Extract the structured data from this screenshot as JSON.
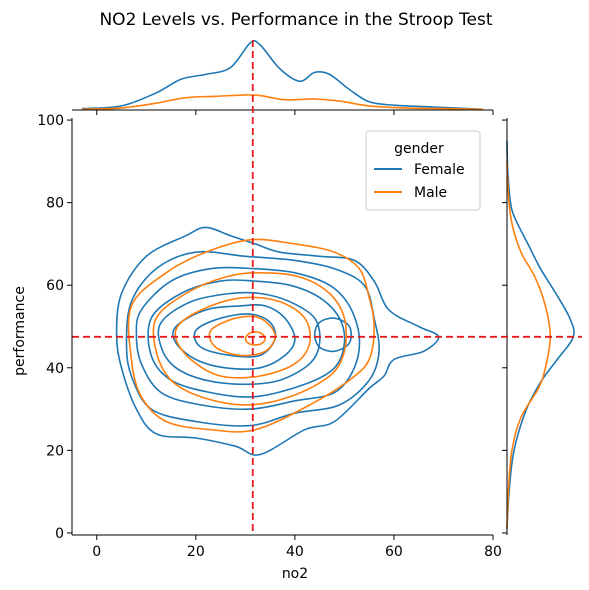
{
  "chart_data": {
    "type": "kde-joint",
    "title": "NO2 Levels vs. Performance in the Stroop Test",
    "xlabel": "no2",
    "ylabel": "performance",
    "xlim": [
      -5,
      80
    ],
    "ylim": [
      -0.5,
      100.5
    ],
    "xticks": [
      0,
      20,
      40,
      60,
      80
    ],
    "yticks": [
      0,
      20,
      40,
      60,
      80,
      100
    ],
    "grid": false,
    "legend": {
      "title": "gender",
      "placement": "top-right",
      "entries": [
        "Female",
        "Male"
      ]
    },
    "reference_lines": {
      "vertical_x": 31.5,
      "horizontal_y": 47.5,
      "color": "#e41a1c",
      "style": "dashed"
    },
    "series": [
      {
        "name": "Female",
        "color": "#1f77b4",
        "joint_contours": [
          {
            "level": 1,
            "points": [
              [
                5,
                58
              ],
              [
                10,
                67
              ],
              [
                18,
                72
              ],
              [
                22,
                74
              ],
              [
                27,
                72
              ],
              [
                32,
                70
              ],
              [
                37,
                68
              ],
              [
                45,
                67
              ],
              [
                52,
                66
              ],
              [
                56,
                61
              ],
              [
                59,
                54
              ],
              [
                65,
                50
              ],
              [
                69,
                47.5
              ],
              [
                66,
                44
              ],
              [
                60,
                42
              ],
              [
                58,
                38
              ],
              [
                55,
                35
              ],
              [
                48,
                27
              ],
              [
                42,
                25
              ],
              [
                33,
                19
              ],
              [
                28,
                21
              ],
              [
                20,
                23
              ],
              [
                12,
                24
              ],
              [
                8,
                30
              ],
              [
                5,
                40
              ],
              [
                4,
                48
              ]
            ]
          },
          {
            "level": 2,
            "points": [
              [
                7,
                56
              ],
              [
                12,
                64
              ],
              [
                20,
                68
              ],
              [
                30,
                67
              ],
              [
                40,
                66
              ],
              [
                48,
                64
              ],
              [
                54,
                60
              ],
              [
                56,
                52
              ],
              [
                57,
                44
              ],
              [
                55,
                37
              ],
              [
                49,
                31
              ],
              [
                40,
                29
              ],
              [
                31,
                26
              ],
              [
                20,
                27
              ],
              [
                11,
                30
              ],
              [
                7,
                38
              ],
              [
                6,
                46
              ]
            ]
          },
          {
            "level": 3,
            "points": [
              [
                9,
                54
              ],
              [
                15,
                61
              ],
              [
                23,
                64
              ],
              [
                32,
                64
              ],
              [
                40,
                63
              ],
              [
                47,
                60
              ],
              [
                51,
                55
              ],
              [
                53,
                47.5
              ],
              [
                52,
                40
              ],
              [
                48,
                34
              ],
              [
                40,
                32
              ],
              [
                31,
                30
              ],
              [
                21,
                31
              ],
              [
                13,
                34
              ],
              [
                9,
                41
              ],
              [
                8,
                48
              ]
            ]
          },
          {
            "level": 4,
            "points": [
              [
                11,
                52
              ],
              [
                17,
                58
              ],
              [
                25,
                61
              ],
              [
                32,
                61
              ],
              [
                39,
                60
              ],
              [
                45,
                57
              ],
              [
                49,
                52
              ],
              [
                50,
                46
              ],
              [
                48,
                40
              ],
              [
                42,
                36
              ],
              [
                32,
                33
              ],
              [
                23,
                34
              ],
              [
                15,
                37
              ],
              [
                11,
                43
              ]
            ]
          },
          {
            "level": 5,
            "points": [
              [
                13,
                51
              ],
              [
                19,
                56
              ],
              [
                27,
                58
              ],
              [
                33,
                58
              ],
              [
                39,
                56
              ],
              [
                44,
                52
              ],
              [
                45,
                46
              ],
              [
                43,
                41
              ],
              [
                37,
                37
              ],
              [
                30,
                36
              ],
              [
                22,
                37
              ],
              [
                16,
                40
              ],
              [
                13,
                45
              ]
            ]
          },
          {
            "level": 6,
            "points": [
              [
                16,
                50
              ],
              [
                22,
                54
              ],
              [
                29,
                55
              ],
              [
                34,
                55
              ],
              [
                38,
                52
              ],
              [
                40,
                47
              ],
              [
                38,
                43
              ],
              [
                33,
                40
              ],
              [
                26,
                40
              ],
              [
                20,
                42
              ],
              [
                16,
                46
              ]
            ]
          },
          {
            "level": 7,
            "points": [
              [
                20,
                49
              ],
              [
                25,
                52
              ],
              [
                31,
                53
              ],
              [
                35,
                51
              ],
              [
                36,
                47
              ],
              [
                33,
                43
              ],
              [
                27,
                43
              ],
              [
                21,
                45
              ]
            ]
          },
          {
            "level": 8,
            "points": [
              [
                45,
                51
              ],
              [
                48,
                52
              ],
              [
                51,
                50
              ],
              [
                51,
                46
              ],
              [
                48,
                44
              ],
              [
                45,
                45
              ],
              [
                44,
                48
              ]
            ]
          }
        ],
        "marginal_x": [
          [
            -3,
            0.02
          ],
          [
            5,
            0.06
          ],
          [
            12,
            0.25
          ],
          [
            17,
            0.45
          ],
          [
            22,
            0.52
          ],
          [
            27,
            0.62
          ],
          [
            31,
            0.98
          ],
          [
            33,
            0.95
          ],
          [
            37,
            0.6
          ],
          [
            41,
            0.42
          ],
          [
            44,
            0.55
          ],
          [
            47,
            0.52
          ],
          [
            51,
            0.3
          ],
          [
            55,
            0.12
          ],
          [
            60,
            0.07
          ],
          [
            66,
            0.05
          ],
          [
            72,
            0.03
          ],
          [
            78,
            0.01
          ]
        ],
        "marginal_y": [
          [
            1,
            0
          ],
          [
            10,
            0.03
          ],
          [
            20,
            0.1
          ],
          [
            30,
            0.28
          ],
          [
            37,
            0.5
          ],
          [
            42,
            0.72
          ],
          [
            47.5,
            0.95
          ],
          [
            52,
            0.9
          ],
          [
            58,
            0.7
          ],
          [
            64,
            0.48
          ],
          [
            70,
            0.3
          ],
          [
            76,
            0.12
          ],
          [
            80,
            0.05
          ],
          [
            88,
            0.01
          ],
          [
            95,
            0
          ]
        ]
      },
      {
        "name": "Male",
        "color": "#ff7f0e",
        "joint_contours": [
          {
            "level": 1,
            "points": [
              [
                7,
                55
              ],
              [
                14,
                63
              ],
              [
                22,
                68
              ],
              [
                31,
                71
              ],
              [
                40,
                70
              ],
              [
                48,
                68
              ],
              [
                53,
                64
              ],
              [
                55,
                57
              ],
              [
                56,
                50
              ],
              [
                55,
                42
              ],
              [
                51,
                37
              ],
              [
                43,
                31
              ],
              [
                32,
                25
              ],
              [
                23,
                25
              ],
              [
                14,
                27
              ],
              [
                9,
                33
              ],
              [
                7,
                42
              ]
            ]
          },
          {
            "level": 2,
            "points": [
              [
                12,
                52
              ],
              [
                18,
                58
              ],
              [
                26,
                62
              ],
              [
                33,
                63
              ],
              [
                41,
                62
              ],
              [
                47,
                58
              ],
              [
                50,
                52
              ],
              [
                50,
                44
              ],
              [
                47,
                38
              ],
              [
                39,
                33
              ],
              [
                30,
                31
              ],
              [
                21,
                33
              ],
              [
                15,
                37
              ],
              [
                12,
                44
              ]
            ]
          },
          {
            "level": 3,
            "points": [
              [
                17,
                51
              ],
              [
                23,
                55
              ],
              [
                30,
                57
              ],
              [
                37,
                56
              ],
              [
                42,
                52
              ],
              [
                43,
                46
              ],
              [
                40,
                41
              ],
              [
                33,
                38
              ],
              [
                25,
                38
              ],
              [
                19,
                42
              ],
              [
                16,
                47
              ]
            ]
          },
          {
            "level": 4,
            "points": [
              [
                23,
                49
              ],
              [
                28,
                52
              ],
              [
                33,
                52
              ],
              [
                36,
                48
              ],
              [
                34,
                44
              ],
              [
                29,
                43
              ],
              [
                24,
                45
              ]
            ]
          },
          {
            "level": 5,
            "points": [
              [
                31,
                48.5
              ],
              [
                33,
                48.5
              ],
              [
                34,
                47
              ],
              [
                33,
                45.7
              ],
              [
                31,
                45.7
              ],
              [
                30,
                47
              ]
            ]
          }
        ],
        "marginal_x": [
          [
            -3,
            0.01
          ],
          [
            5,
            0.03
          ],
          [
            12,
            0.1
          ],
          [
            18,
            0.18
          ],
          [
            24,
            0.2
          ],
          [
            30,
            0.22
          ],
          [
            33,
            0.21
          ],
          [
            38,
            0.15
          ],
          [
            44,
            0.16
          ],
          [
            49,
            0.13
          ],
          [
            55,
            0.06
          ],
          [
            62,
            0.03
          ],
          [
            70,
            0.02
          ],
          [
            78,
            0.01
          ]
        ],
        "marginal_y": [
          [
            1,
            0
          ],
          [
            10,
            0.02
          ],
          [
            20,
            0.07
          ],
          [
            28,
            0.2
          ],
          [
            35,
            0.45
          ],
          [
            40,
            0.55
          ],
          [
            47.5,
            0.62
          ],
          [
            55,
            0.55
          ],
          [
            62,
            0.4
          ],
          [
            68,
            0.2
          ],
          [
            75,
            0.07
          ],
          [
            82,
            0.02
          ],
          [
            90,
            0
          ]
        ]
      }
    ]
  }
}
